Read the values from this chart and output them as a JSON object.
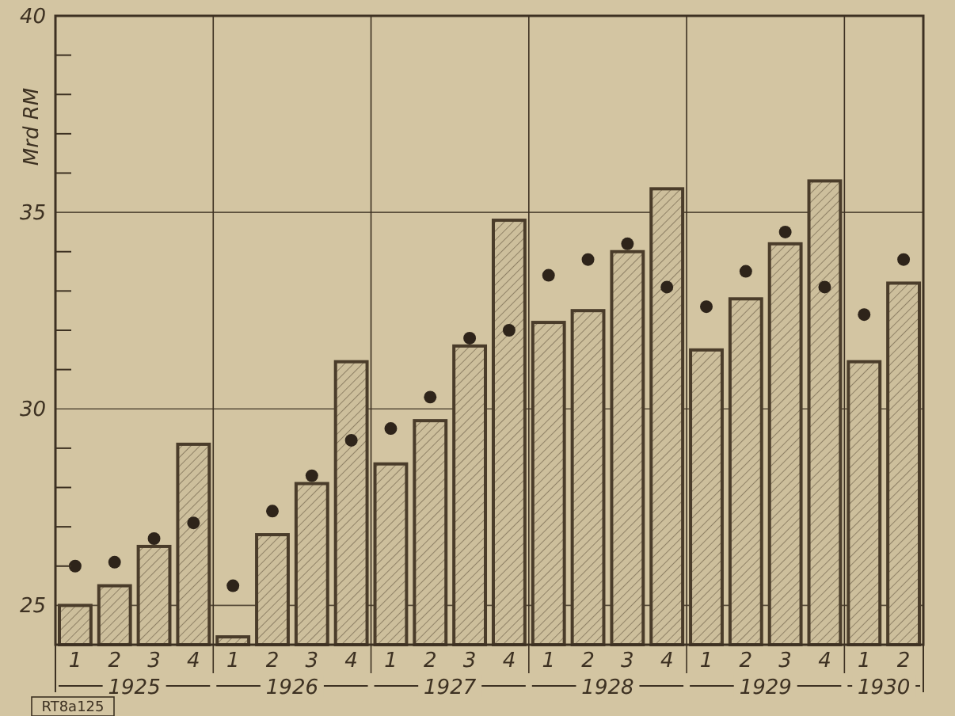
{
  "chart_data": {
    "type": "bar",
    "ylabel": "Mrd RM",
    "categories": [
      "1",
      "2",
      "3",
      "4",
      "1",
      "2",
      "3",
      "4",
      "1",
      "2",
      "3",
      "4",
      "1",
      "2",
      "3",
      "4",
      "1",
      "2",
      "3",
      "4",
      "1",
      "2"
    ],
    "series": [
      {
        "color": "#4a3c2a",
        "values": [
          25.0,
          25.5,
          26.5,
          29.1,
          24.2,
          26.8,
          28.1,
          31.2,
          28.6,
          29.7,
          31.6,
          34.8,
          32.2,
          32.5,
          34.0,
          35.6,
          31.5,
          32.8,
          34.2,
          35.8,
          31.2,
          33.2
        ]
      },
      {
        "type": "scatter",
        "color": "#2e241a",
        "values": [
          26.0,
          26.1,
          26.7,
          27.1,
          25.5,
          27.4,
          28.3,
          29.2,
          29.5,
          30.3,
          31.8,
          32.0,
          33.4,
          33.8,
          34.2,
          33.1,
          32.6,
          33.5,
          34.5,
          33.1,
          32.4,
          33.8
        ]
      }
    ],
    "ylim": [
      24,
      40
    ],
    "yticks": [
      25,
      {
        "value": 26,
        "label": null
      },
      {
        "value": 27,
        "label": null
      },
      {
        "value": 28,
        "label": null
      },
      {
        "value": 29,
        "label": null
      },
      30,
      {
        "value": 31,
        "label": null
      },
      {
        "value": 32,
        "label": null
      },
      {
        "value": 33,
        "label": null
      },
      {
        "value": 34,
        "label": null
      },
      35,
      {
        "value": 36,
        "label": null
      },
      {
        "value": 37,
        "label": null
      },
      {
        "value": 38,
        "label": null
      },
      {
        "value": 39,
        "label": null
      },
      40
    ],
    "grid": true,
    "marker": "circle",
    "annotations": [
      "1925",
      "1926",
      "1927",
      "1928",
      "1929",
      "1930",
      "RT8a125"
    ]
  }
}
